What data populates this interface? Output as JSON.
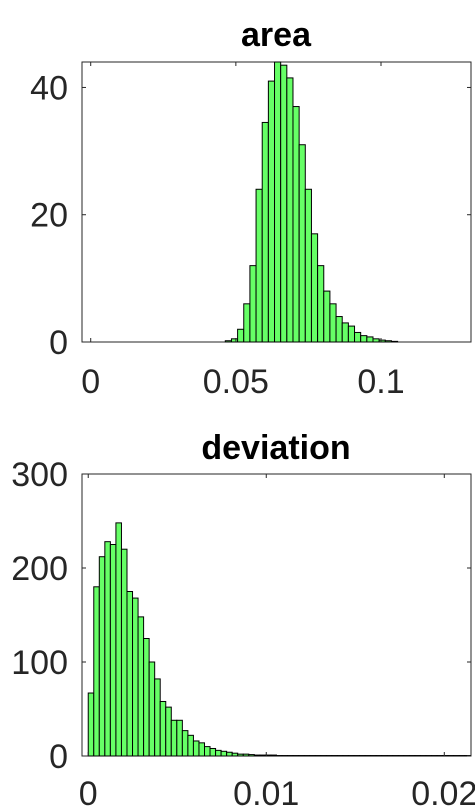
{
  "chart_data": [
    {
      "type": "bar",
      "title": "area",
      "xlabel": "",
      "ylabel": "",
      "xlim": [
        -0.003,
        0.131
      ],
      "ylim": [
        0,
        44
      ],
      "xticks": [
        0,
        0.05,
        0.1
      ],
      "xtick_labels": [
        "0",
        "0.05",
        "0.1"
      ],
      "yticks": [
        0,
        20,
        40
      ],
      "ytick_labels": [
        "0",
        "20",
        "40"
      ],
      "bin_edges_start": 0.04636,
      "bin_width": 0.00212,
      "values": [
        0.2,
        0.5,
        2.0,
        6.0,
        12.0,
        24.0,
        34.5,
        41.0,
        44.0,
        43.5,
        41.5,
        37.0,
        31.0,
        24.0,
        17.0,
        12.0,
        8.0,
        6.0,
        4.0,
        3.0,
        2.5,
        1.5,
        1.0,
        0.8,
        0.5,
        0.3,
        0.2,
        0.1
      ],
      "bar_color": "#66ff66",
      "grid": false
    },
    {
      "type": "bar",
      "title": "deviation",
      "xlabel": "",
      "ylabel": "",
      "xlim": [
        -0.00035,
        0.0215
      ],
      "ylim": [
        0,
        300
      ],
      "xticks": [
        0,
        0.01,
        0.02
      ],
      "xtick_labels": [
        "0",
        "0.01",
        "0.02"
      ],
      "yticks": [
        0,
        100,
        200,
        300
      ],
      "ytick_labels": [
        "0",
        "100",
        "200",
        "300"
      ],
      "bin_edges_start": 0.0,
      "bin_width": 0.000311,
      "values": [
        67,
        180,
        212,
        228,
        225,
        248,
        220,
        175,
        168,
        148,
        125,
        100,
        82,
        58,
        52,
        38,
        38,
        27,
        22,
        16,
        14,
        10,
        8,
        6,
        5,
        4,
        3,
        2,
        2,
        1.5,
        1,
        1,
        1,
        1,
        0.5,
        0.5,
        0.5,
        0.5,
        0.5,
        0.5,
        0.5,
        0.5,
        0.5,
        0.5,
        0.5,
        0.5,
        0.5,
        0.5,
        0.5,
        0.5,
        0.5,
        0.5,
        0.5,
        0.5,
        0.5,
        0.5,
        0.5,
        0.5,
        0.5,
        0.5,
        0.5,
        0.5,
        0.5,
        0.5,
        0.5,
        0.5,
        0.5,
        0.5,
        0.5
      ],
      "bar_color": "#66ff66",
      "grid": false
    }
  ]
}
